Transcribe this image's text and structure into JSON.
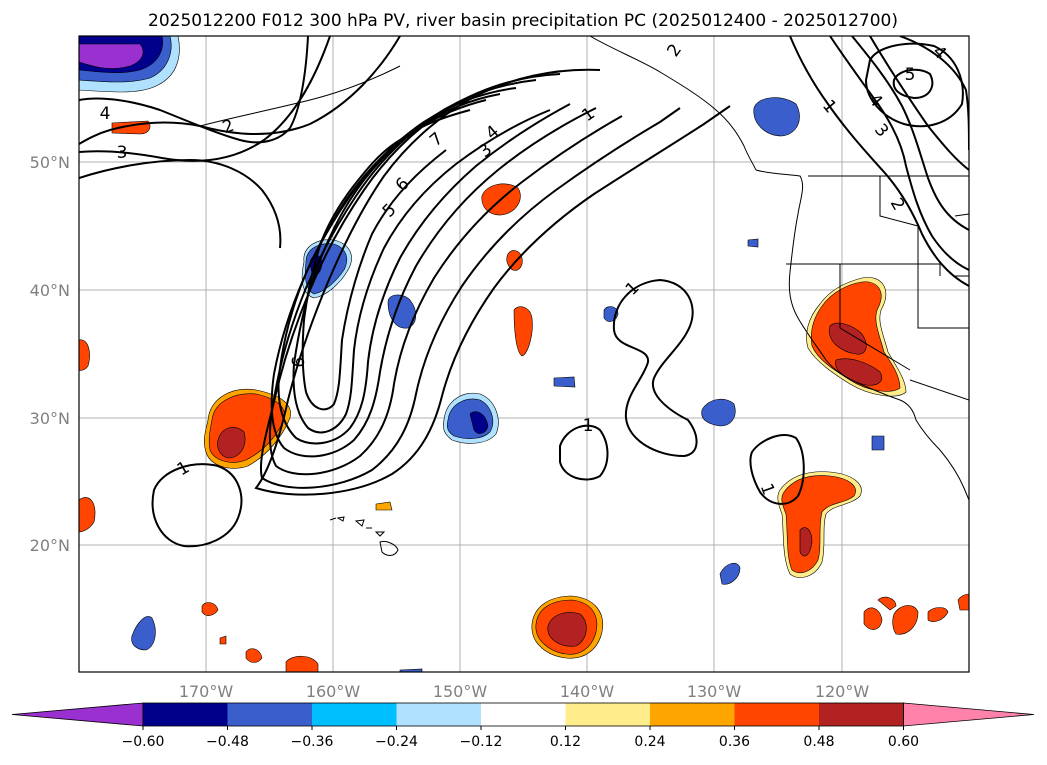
{
  "title": "2025012200 F012 300 hPa PV, river basin precipitation PC (2025012400 - 2025012700)",
  "longitude_labels": [
    "170°W",
    "160°W",
    "150°W",
    "140°W",
    "130°W",
    "120°W"
  ],
  "latitude_labels": [
    "50°N",
    "40°N",
    "30°N",
    "20°N"
  ],
  "colorbar": {
    "tick_labels": [
      "−0.60",
      "−0.48",
      "−0.36",
      "−0.24",
      "−0.12",
      "0.12",
      "0.24",
      "0.36",
      "0.48",
      "0.60"
    ],
    "colors": [
      "#9b30d0",
      "#00008b",
      "#3a5fcd",
      "#00bfff",
      "#b0e2ff",
      "#ffffff",
      "#ffec8b",
      "#ffa500",
      "#ff4500",
      "#b22222",
      "#ff82ab"
    ]
  },
  "pv_contour_labels": [
    {
      "id": "lbl-1a",
      "text": "1"
    },
    {
      "id": "lbl-1b",
      "text": "1"
    },
    {
      "id": "lbl-1c",
      "text": "1"
    },
    {
      "id": "lbl-1d",
      "text": "1"
    },
    {
      "id": "lbl-1e",
      "text": "1"
    },
    {
      "id": "lbl-1f",
      "text": "1"
    },
    {
      "id": "lbl-2a",
      "text": "2"
    },
    {
      "id": "lbl-2b",
      "text": "2"
    },
    {
      "id": "lbl-2c",
      "text": "2"
    },
    {
      "id": "lbl-3a",
      "text": "3"
    },
    {
      "id": "lbl-3b",
      "text": "3"
    },
    {
      "id": "lbl-3c",
      "text": "3"
    },
    {
      "id": "lbl-4a",
      "text": "4"
    },
    {
      "id": "lbl-4b",
      "text": "4"
    },
    {
      "id": "lbl-4c",
      "text": "4"
    },
    {
      "id": "lbl-4d",
      "text": "4"
    },
    {
      "id": "lbl-5a",
      "text": "5"
    },
    {
      "id": "lbl-5b",
      "text": "5"
    },
    {
      "id": "lbl-6a",
      "text": "6"
    },
    {
      "id": "lbl-6b",
      "text": "6"
    },
    {
      "id": "lbl-7a",
      "text": "7"
    }
  ]
}
